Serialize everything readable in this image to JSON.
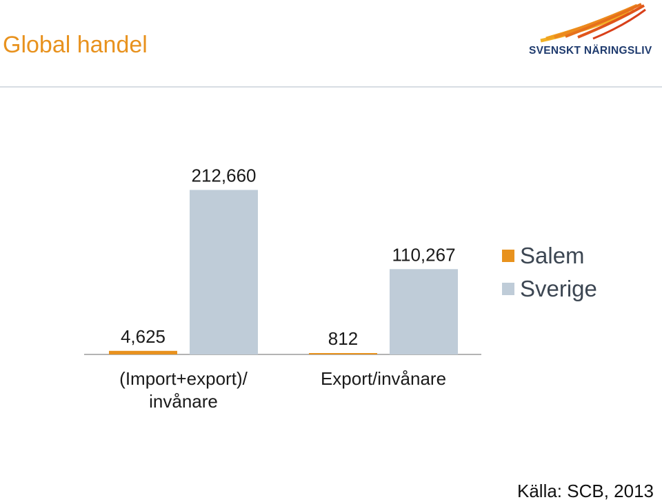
{
  "header": {
    "title": "Global handel",
    "logo_text": "SVENSKT NÄRINGSLIV"
  },
  "colors": {
    "title": "#e8921e",
    "salem": "#e8921e",
    "sverige": "#bfccd8",
    "axis": "#9a9a9a",
    "text": "#3c4652",
    "logo": "#1f3b6e"
  },
  "chart_data": {
    "type": "bar",
    "categories": [
      "(Import+export)/\ninvånare",
      "Export/invånare"
    ],
    "series": [
      {
        "name": "Salem",
        "color": "#e8921e",
        "values": [
          4625,
          812
        ],
        "labels": [
          "4,625",
          "812"
        ]
      },
      {
        "name": "Sverige",
        "color": "#bfccd8",
        "values": [
          212660,
          110267
        ],
        "labels": [
          "212,660",
          "110,267"
        ]
      }
    ],
    "ylim": [
      0,
      230000
    ],
    "grid": false,
    "legend": "right"
  },
  "legend": {
    "items": [
      {
        "label": "Salem",
        "color": "#e8921e"
      },
      {
        "label": "Sverige",
        "color": "#bfccd8"
      }
    ]
  },
  "footer": {
    "source": "Källa: SCB, 2013"
  }
}
